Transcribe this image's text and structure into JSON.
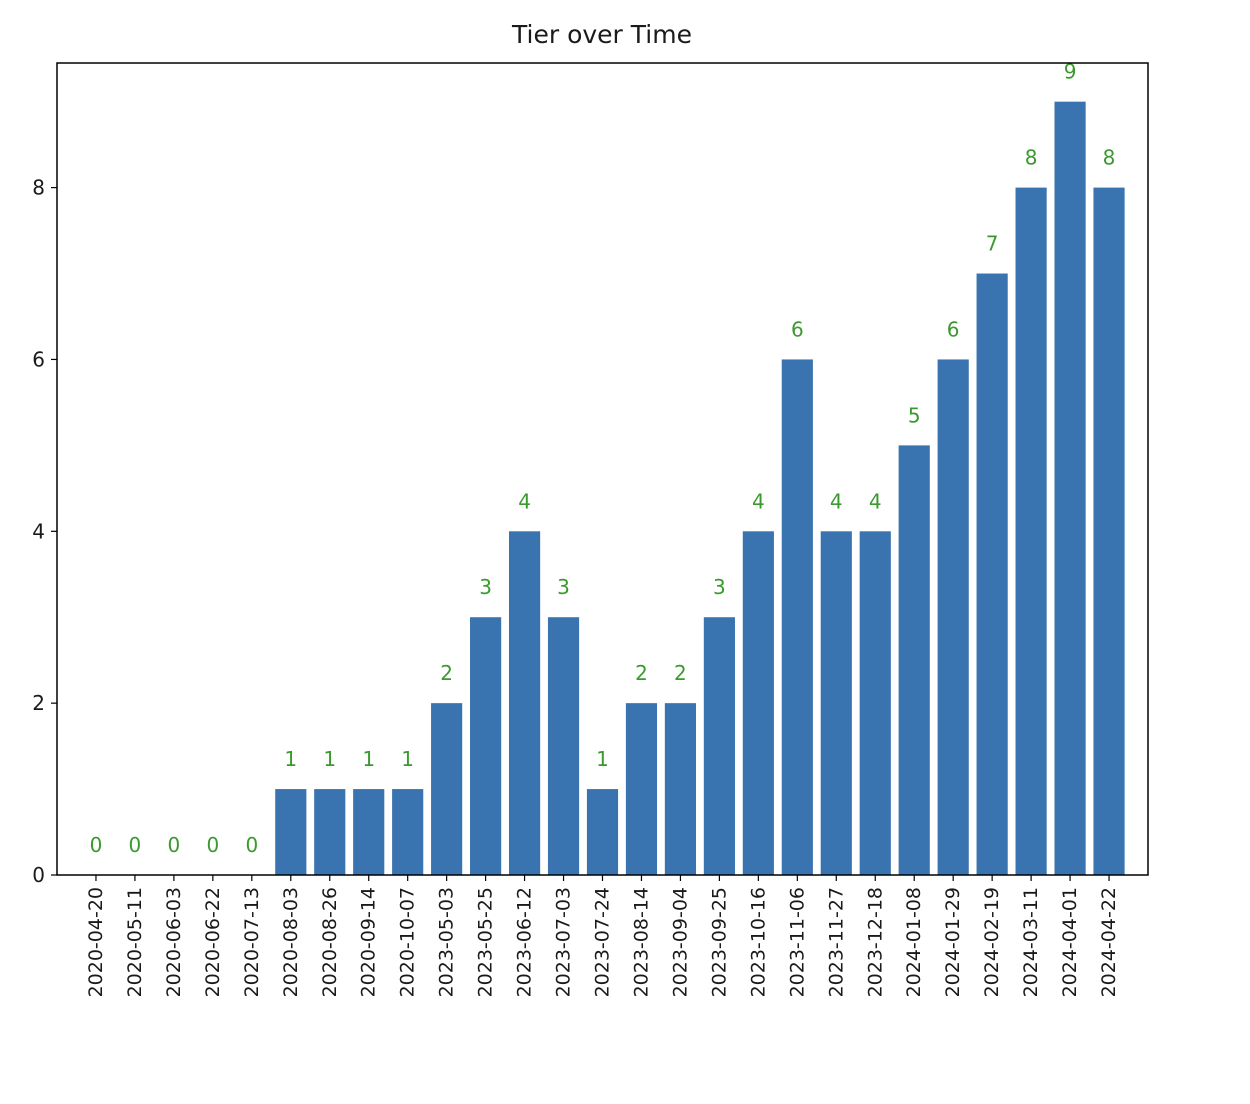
{
  "chart_data": {
    "type": "bar",
    "title": "Tier over Time",
    "xlabel": "",
    "ylabel": "",
    "categories": [
      "2020-04-20",
      "2020-05-11",
      "2020-06-03",
      "2020-06-22",
      "2020-07-13",
      "2020-08-03",
      "2020-08-26",
      "2020-09-14",
      "2020-10-07",
      "2023-05-03",
      "2023-05-25",
      "2023-06-12",
      "2023-07-03",
      "2023-07-24",
      "2023-08-14",
      "2023-09-04",
      "2023-09-25",
      "2023-10-16",
      "2023-11-06",
      "2023-11-27",
      "2023-12-18",
      "2024-01-08",
      "2024-01-29",
      "2024-02-19",
      "2024-03-11",
      "2024-04-01",
      "2024-04-22"
    ],
    "values": [
      0,
      0,
      0,
      0,
      0,
      1,
      1,
      1,
      1,
      2,
      3,
      4,
      3,
      1,
      2,
      2,
      3,
      4,
      6,
      4,
      4,
      5,
      6,
      7,
      8,
      9,
      8
    ],
    "ylim": [
      0,
      9.45
    ],
    "yticks": [
      0,
      2,
      4,
      6,
      8
    ],
    "grid": false,
    "bar_color": "#3a74b0",
    "label_color": "#3a9a2e"
  }
}
